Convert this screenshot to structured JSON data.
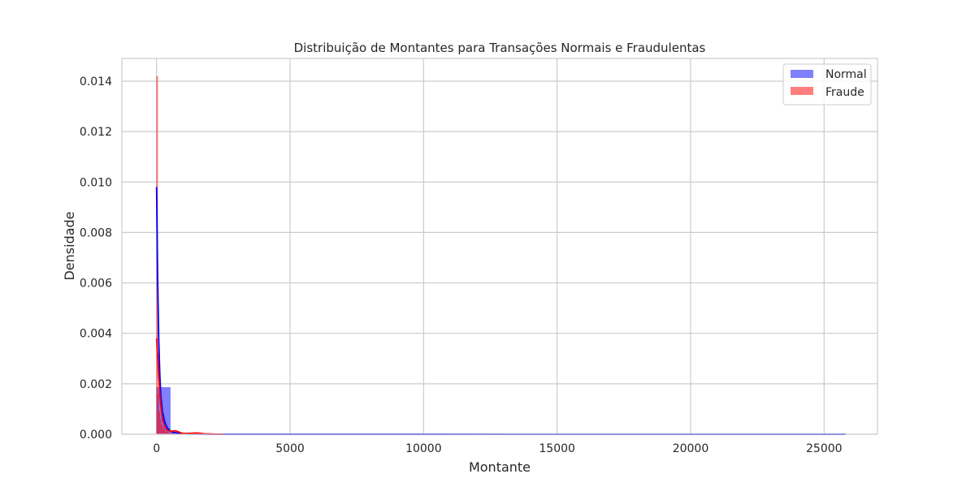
{
  "chart_data": {
    "type": "histogram",
    "title": "Distribuição de Montantes para Transações Normais e Fraudulentas",
    "xlabel": "Montante",
    "ylabel": "Densidade",
    "xlim": [
      -1300,
      27000
    ],
    "ylim": [
      0,
      0.0149
    ],
    "xticks": [
      0,
      5000,
      10000,
      15000,
      20000,
      25000
    ],
    "xtick_labels": [
      "0",
      "5000",
      "10000",
      "15000",
      "20000",
      "25000"
    ],
    "yticks": [
      0,
      0.002,
      0.004,
      0.006,
      0.008,
      0.01,
      0.012,
      0.014
    ],
    "ytick_labels": [
      "0.000",
      "0.002",
      "0.004",
      "0.006",
      "0.008",
      "0.010",
      "0.012",
      "0.014"
    ],
    "grid": true,
    "legend": {
      "position": "top-right",
      "entries": [
        "Normal",
        "Fraude"
      ]
    },
    "series": [
      {
        "name": "Normal",
        "color": "#0000ff",
        "bar_alpha": 0.5,
        "bins": [
          {
            "x0": 0,
            "x1": 514,
            "density": 0.00186
          },
          {
            "x0": 514,
            "x1": 1028,
            "density": 5e-05
          },
          {
            "x0": 1028,
            "x1": 1542,
            "density": 1e-05
          },
          {
            "x0": 1542,
            "x1": 2056,
            "density": 4e-06
          }
        ],
        "kde": [
          [
            0,
            0.0098
          ],
          [
            40,
            0.0062
          ],
          [
            80,
            0.0038
          ],
          [
            120,
            0.0024
          ],
          [
            160,
            0.0015
          ],
          [
            220,
            0.0009
          ],
          [
            300,
            0.0005
          ],
          [
            400,
            0.00025
          ],
          [
            550,
            0.0001
          ],
          [
            800,
            4e-05
          ],
          [
            1200,
            1e-05
          ],
          [
            2000,
            2e-06
          ],
          [
            25800,
            0
          ]
        ]
      },
      {
        "name": "Fraude",
        "color": "#ff0000",
        "bar_alpha": 0.5,
        "bins": [
          {
            "x0": 0,
            "x1": 43,
            "density": 0.0142
          },
          {
            "x0": 43,
            "x1": 86,
            "density": 0.0016
          },
          {
            "x0": 86,
            "x1": 129,
            "density": 0.0009
          },
          {
            "x0": 129,
            "x1": 172,
            "density": 0.0006
          },
          {
            "x0": 172,
            "x1": 215,
            "density": 0.0004
          },
          {
            "x0": 215,
            "x1": 258,
            "density": 0.0003
          },
          {
            "x0": 258,
            "x1": 301,
            "density": 0.0002
          },
          {
            "x0": 301,
            "x1": 344,
            "density": 0.00015
          },
          {
            "x0": 344,
            "x1": 430,
            "density": 0.0001
          },
          {
            "x0": 430,
            "x1": 600,
            "density": 6e-05
          },
          {
            "x0": 600,
            "x1": 900,
            "density": 4e-05
          },
          {
            "x0": 900,
            "x1": 1400,
            "density": 2e-05
          },
          {
            "x0": 1400,
            "x1": 2200,
            "density": 1e-05
          }
        ],
        "kde": [
          [
            0,
            0.0038
          ],
          [
            40,
            0.0031
          ],
          [
            80,
            0.0023
          ],
          [
            120,
            0.0016
          ],
          [
            160,
            0.0011
          ],
          [
            220,
            0.0006
          ],
          [
            300,
            0.0003
          ],
          [
            400,
            0.00015
          ],
          [
            550,
            0.00012
          ],
          [
            700,
            0.00014
          ],
          [
            850,
            8e-05
          ],
          [
            1000,
            3e-05
          ],
          [
            1300,
            4e-05
          ],
          [
            1500,
            5e-05
          ],
          [
            1800,
            2e-05
          ],
          [
            2200,
            5e-06
          ],
          [
            2500,
            0
          ]
        ]
      }
    ]
  }
}
